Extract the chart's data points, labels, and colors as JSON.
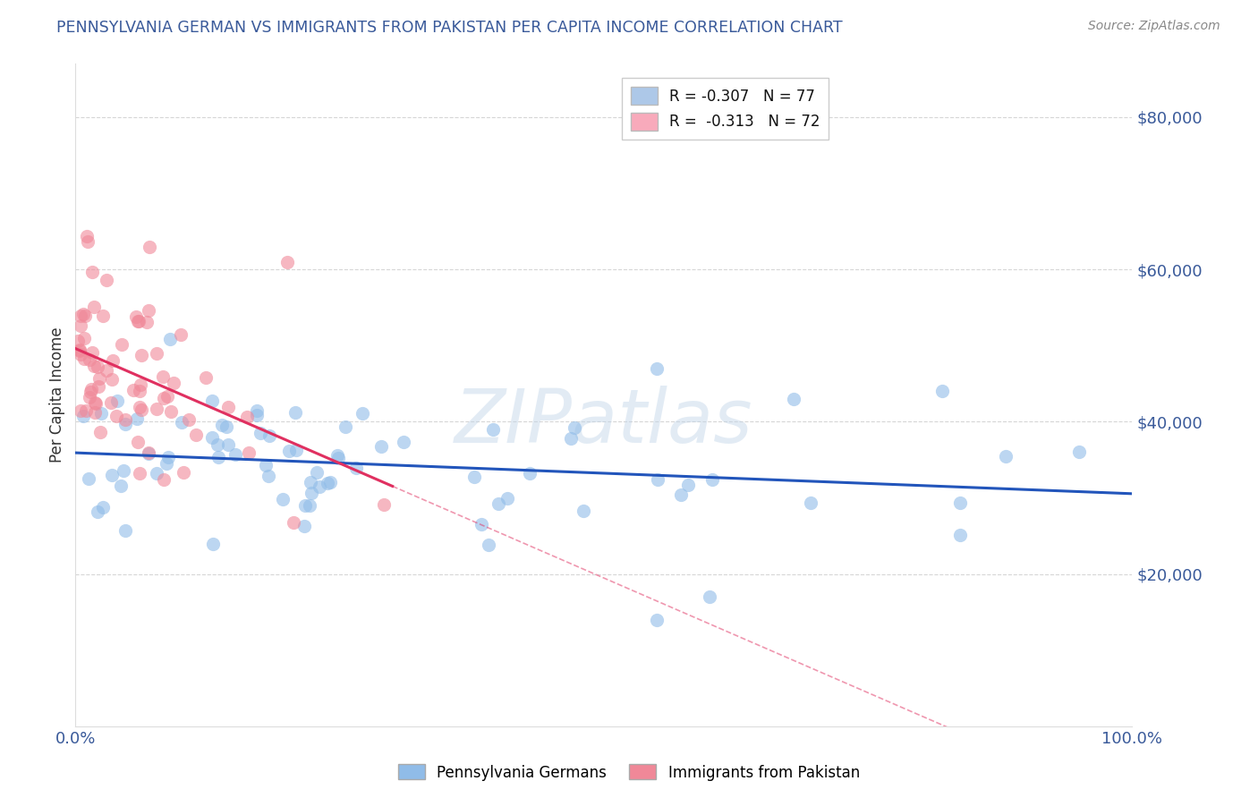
{
  "title": "PENNSYLVANIA GERMAN VS IMMIGRANTS FROM PAKISTAN PER CAPITA INCOME CORRELATION CHART",
  "source": "Source: ZipAtlas.com",
  "ylabel": "Per Capita Income",
  "watermark": "ZIPatlas",
  "legend_entries": [
    {
      "label": "R = -0.307   N = 77",
      "color": "#adc8e8"
    },
    {
      "label": "R =  -0.313   N = 72",
      "color": "#f8aabb"
    }
  ],
  "series1_color": "#90bce8",
  "series2_color": "#f08898",
  "trendline1_color": "#2255bb",
  "trendline2_color": "#e03060",
  "background_color": "#ffffff",
  "grid_color": "#cccccc",
  "ytick_labels": [
    "$20,000",
    "$40,000",
    "$60,000",
    "$80,000"
  ],
  "ytick_values": [
    20000,
    40000,
    60000,
    80000
  ],
  "xmin": 0.0,
  "xmax": 100.0,
  "ymin": 0,
  "ymax": 87000,
  "title_color": "#3a5a9a",
  "axis_label_color": "#333333",
  "tick_label_color": "#3a5a9a",
  "source_color": "#888888",
  "bottom_legend": [
    {
      "label": "Pennsylvania Germans",
      "color": "#90bce8"
    },
    {
      "label": "Immigrants from Pakistan",
      "color": "#f08898"
    }
  ]
}
